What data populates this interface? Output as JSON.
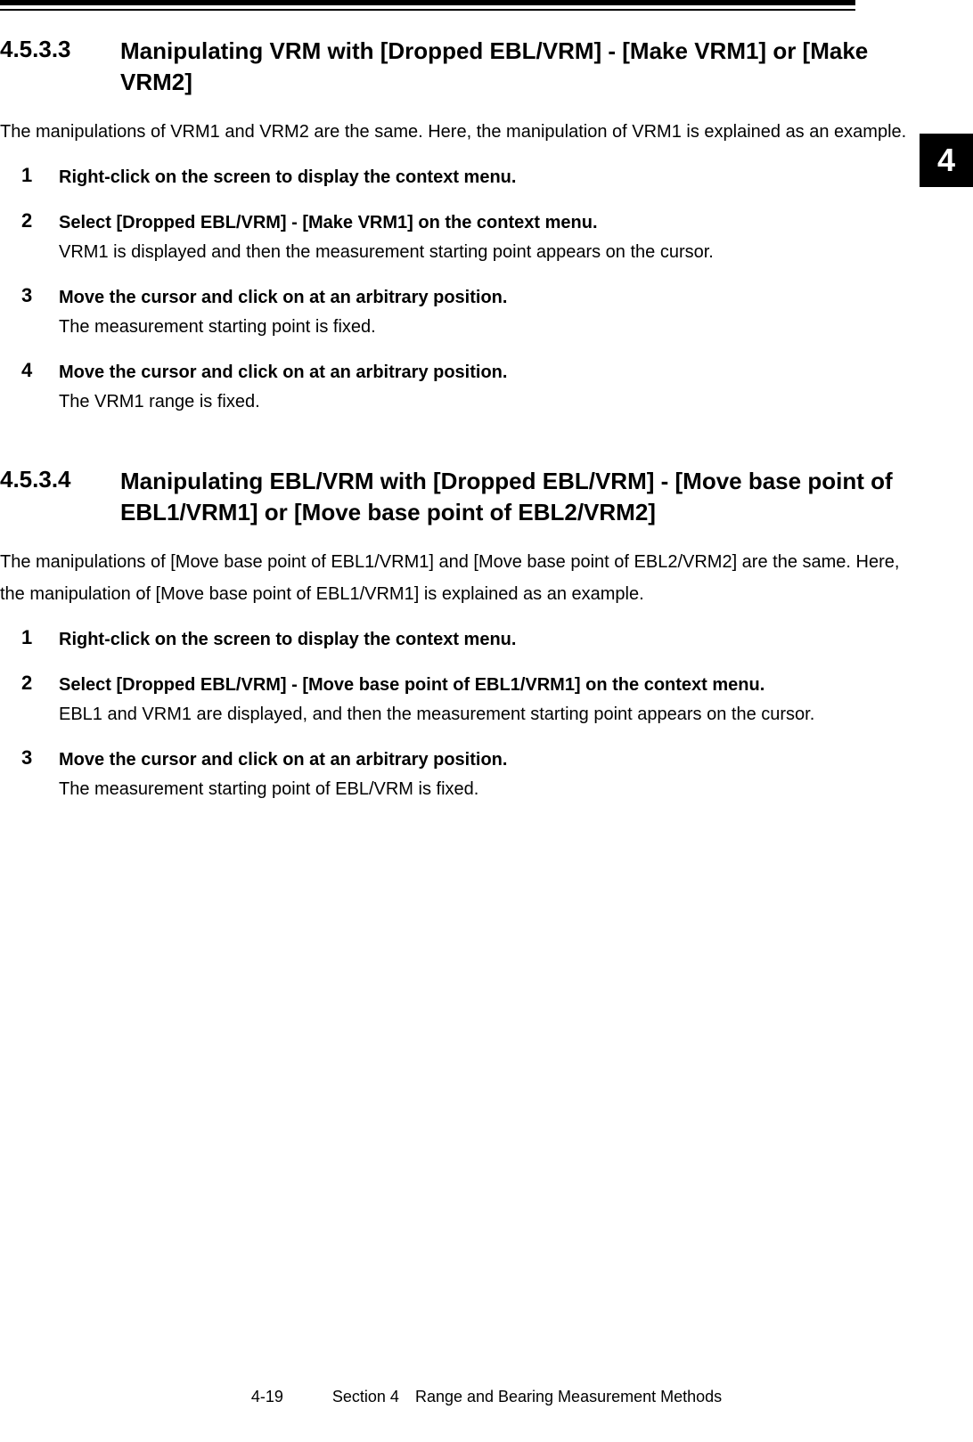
{
  "chapter_tab": "4",
  "section1": {
    "number": "4.5.3.3",
    "title": "Manipulating VRM with [Dropped EBL/VRM] - [Make VRM1] or [Make VRM2]",
    "intro": "The manipulations of VRM1 and VRM2 are the same. Here, the manipulation of VRM1 is explained as an example.",
    "steps": [
      {
        "num": "1",
        "title": "Right-click on the screen to display the context menu.",
        "desc": ""
      },
      {
        "num": "2",
        "title": "Select [Dropped EBL/VRM] - [Make VRM1] on the context menu.",
        "desc": "VRM1 is displayed and then the measurement starting point appears on the cursor."
      },
      {
        "num": "3",
        "title": "Move the cursor and click on at an arbitrary position.",
        "desc": "The measurement starting point is fixed."
      },
      {
        "num": "4",
        "title": "Move the cursor and click on at an arbitrary position.",
        "desc": "The VRM1 range is fixed."
      }
    ]
  },
  "section2": {
    "number": "4.5.3.4",
    "title": "Manipulating EBL/VRM with [Dropped EBL/VRM] - [Move base point of EBL1/VRM1] or [Move base point of EBL2/VRM2]",
    "intro": "The manipulations of [Move base point of EBL1/VRM1] and [Move base point of EBL2/VRM2] are the same. Here, the manipulation of [Move base point of EBL1/VRM1] is explained as an example.",
    "steps": [
      {
        "num": "1",
        "title": "Right-click on the screen to display the context menu.",
        "desc": ""
      },
      {
        "num": "2",
        "title": "Select [Dropped EBL/VRM] - [Move base point of EBL1/VRM1] on the context menu.",
        "desc": "EBL1 and VRM1 are displayed, and then the measurement starting point appears on the cursor."
      },
      {
        "num": "3",
        "title": "Move the cursor and click on at an arbitrary position.",
        "desc": "The measurement starting point of EBL/VRM is fixed."
      }
    ]
  },
  "footer": {
    "page": "4-19",
    "section_label": "Section 4 Range and Bearing Measurement Methods"
  }
}
